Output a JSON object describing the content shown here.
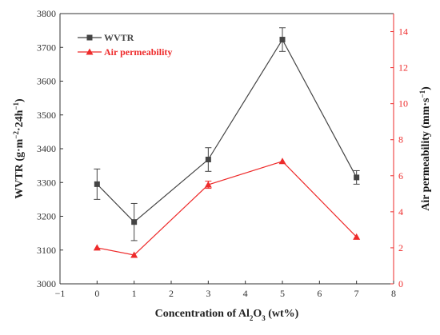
{
  "chart_data": {
    "type": "line",
    "x": [
      0,
      1,
      3,
      5,
      7
    ],
    "xlabel": "Concentration of Al₂O₃ (wt%)",
    "xlabel_parts": [
      "Concentration of Al",
      "2",
      "O",
      "3",
      " (wt%)"
    ],
    "xlim": [
      -1,
      8
    ],
    "xticks": [
      -1,
      0,
      1,
      2,
      3,
      4,
      5,
      6,
      7,
      8
    ],
    "axes": {
      "left": {
        "label": "WVTR (g·m⁻²·24h⁻¹)",
        "label_parts": [
          "WVTR (g·m",
          "−2",
          "·24h",
          "−1",
          ")"
        ],
        "ylim": [
          3000,
          3800
        ],
        "ticks": [
          3000,
          3100,
          3200,
          3300,
          3400,
          3500,
          3600,
          3700,
          3800
        ],
        "color": "#333333"
      },
      "right": {
        "label": "Air permeability (mm·s⁻¹)",
        "label_parts": [
          "Air permeability (mm·s",
          "−1",
          ")"
        ],
        "ylim": [
          0,
          15
        ],
        "ticks": [
          0,
          2,
          4,
          6,
          8,
          10,
          12,
          14
        ],
        "color": "#ee2b2b"
      }
    },
    "series": [
      {
        "name": "WVTR",
        "axis": "left",
        "marker": "square",
        "color": "#444444",
        "values": [
          3295,
          3183,
          3368,
          3723,
          3315
        ],
        "errors": [
          45,
          55,
          35,
          35,
          20
        ]
      },
      {
        "name": "Air permeability",
        "axis": "right",
        "marker": "triangle",
        "color": "#ee2b2b",
        "values": [
          2.0,
          1.6,
          5.5,
          6.8,
          2.6
        ],
        "errors": [
          0,
          0,
          0.2,
          0,
          0
        ]
      }
    ],
    "legend": "top-left",
    "grid": false
  }
}
